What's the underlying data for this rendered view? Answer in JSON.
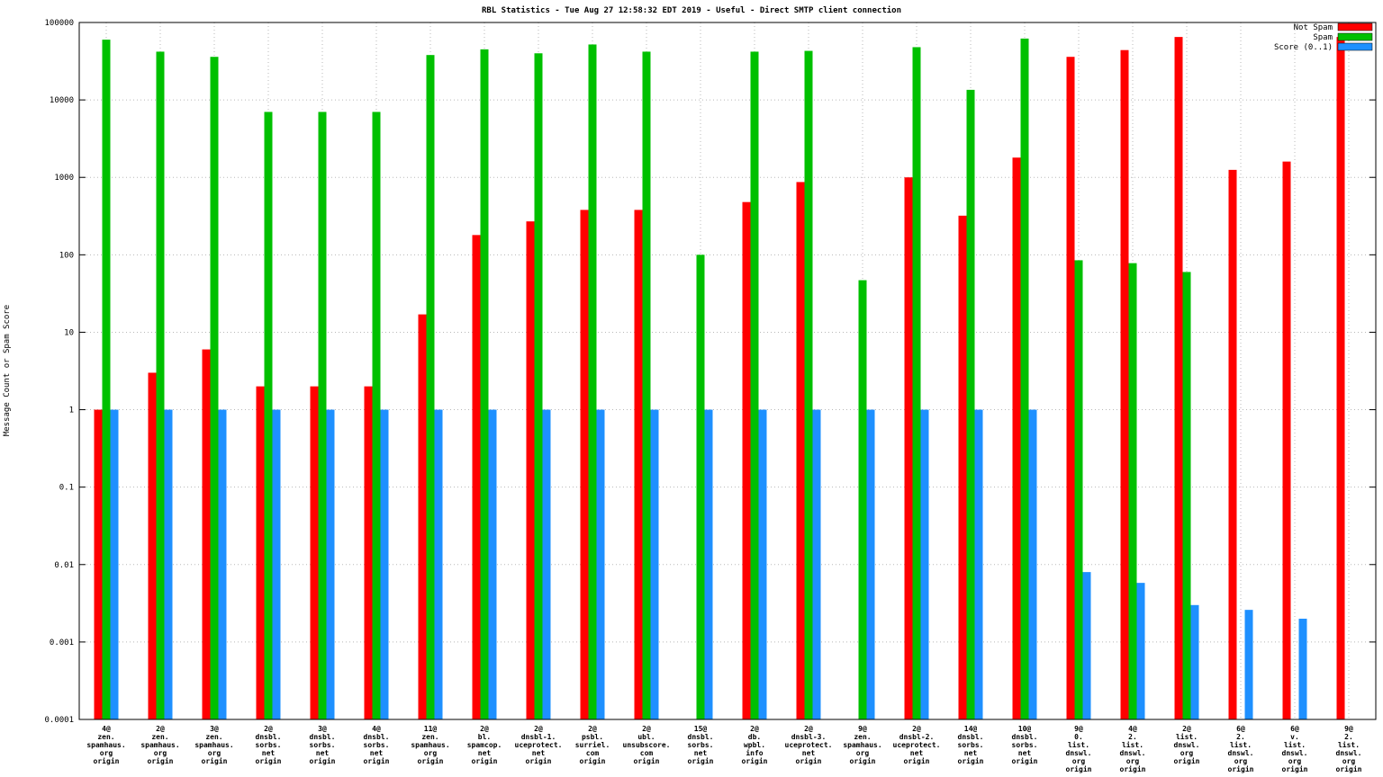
{
  "chart_data": {
    "type": "bar",
    "title": "RBL Statistics - Tue Aug 27 12:58:32 EDT 2019 - Useful - Direct SMTP client connection",
    "ylabel": "Message Count or Spam Score",
    "yscale": "log",
    "ylim": [
      0.0001,
      100000
    ],
    "yticks": [
      "100000",
      "10000",
      "1000",
      "100",
      "10",
      "1",
      "0.1",
      "0.01",
      "0.001",
      "0.0001"
    ],
    "grid": true,
    "grid_color": "#b8b8b8",
    "legend_position": "top-right",
    "categories": [
      [
        "4@",
        "zen.",
        "spamhaus.",
        "org",
        "origin"
      ],
      [
        "2@",
        "zen.",
        "spamhaus.",
        "org",
        "origin"
      ],
      [
        "3@",
        "zen.",
        "spamhaus.",
        "org",
        "origin"
      ],
      [
        "2@",
        "dnsbl.",
        "sorbs.",
        "net",
        "origin"
      ],
      [
        "3@",
        "dnsbl.",
        "sorbs.",
        "net",
        "origin"
      ],
      [
        "4@",
        "dnsbl.",
        "sorbs.",
        "net",
        "origin"
      ],
      [
        "11@",
        "zen.",
        "spamhaus.",
        "org",
        "origin"
      ],
      [
        "2@",
        "bl.",
        "spamcop.",
        "net",
        "origin"
      ],
      [
        "2@",
        "dnsbl-1.",
        "uceprotect.",
        "net",
        "origin"
      ],
      [
        "2@",
        "psbl.",
        "surriel.",
        "com",
        "origin"
      ],
      [
        "2@",
        "ubl.",
        "unsubscore.",
        "com",
        "origin"
      ],
      [
        "15@",
        "dnsbl.",
        "sorbs.",
        "net",
        "origin"
      ],
      [
        "2@",
        "db.",
        "wpbl.",
        "info",
        "origin"
      ],
      [
        "2@",
        "dnsbl-3.",
        "uceprotect.",
        "net",
        "origin"
      ],
      [
        "9@",
        "zen.",
        "spamhaus.",
        "org",
        "origin"
      ],
      [
        "2@",
        "dnsbl-2.",
        "uceprotect.",
        "net",
        "origin"
      ],
      [
        "14@",
        "dnsbl.",
        "sorbs.",
        "net",
        "origin"
      ],
      [
        "10@",
        "dnsbl.",
        "sorbs.",
        "net",
        "origin"
      ],
      [
        "9@",
        "0.",
        "list.",
        "dnswl.",
        "org",
        "origin"
      ],
      [
        "4@",
        "2.",
        "list.",
        "dnswl.",
        "org",
        "origin"
      ],
      [
        "2@",
        "list.",
        "dnswl.",
        "org",
        "origin"
      ],
      [
        "6@",
        "2.",
        "list.",
        "dnswl.",
        "org",
        "origin"
      ],
      [
        "6@",
        "v.",
        "list.",
        "dnswl.",
        "org",
        "origin"
      ],
      [
        "9@",
        "2.",
        "list.",
        "dnswl.",
        "org",
        "origin"
      ]
    ],
    "series": [
      {
        "name": "Not Spam",
        "color": "#ff0000",
        "values": [
          1,
          3,
          6,
          2,
          2,
          2,
          17,
          180,
          270,
          380,
          380,
          null,
          480,
          870,
          null,
          1000,
          320,
          1800,
          36000,
          44000,
          65000,
          1250,
          1600,
          65000
        ]
      },
      {
        "name": "Spam",
        "color": "#00c000",
        "values": [
          60000,
          42000,
          36000,
          7000,
          7000,
          7000,
          38000,
          45000,
          40000,
          52000,
          42000,
          100,
          42000,
          43000,
          47,
          48000,
          13500,
          62000,
          85,
          78,
          60,
          null,
          null,
          null
        ]
      },
      {
        "name": "Score (0..1)",
        "color": "#1e90ff",
        "values": [
          1,
          1,
          1,
          1,
          1,
          1,
          1,
          1,
          1,
          1,
          1,
          1,
          1,
          1,
          1,
          1,
          1,
          1,
          0.008,
          0.0058,
          0.003,
          0.0026,
          0.002,
          null
        ]
      }
    ]
  }
}
